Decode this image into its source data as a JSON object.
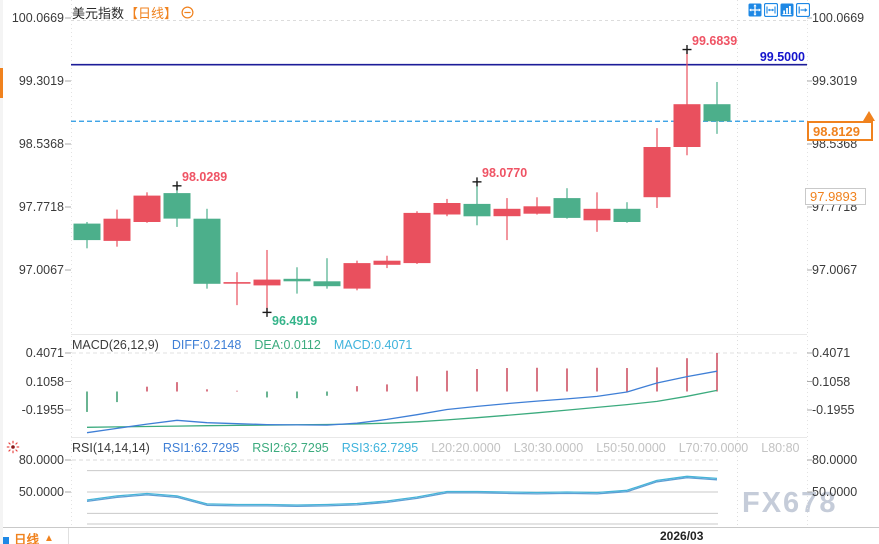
{
  "header": {
    "title": "美元指数",
    "period_tag": "【日线】",
    "collapse_icon": "minus-circle"
  },
  "toolbar": {
    "icons": [
      "move",
      "fit-width",
      "bar-chart",
      "pan-right"
    ]
  },
  "watermark": "FX678",
  "colors": {
    "up": "#e9505e",
    "down": "#4caf8b",
    "orange": "#f0821e",
    "navy_line": "#1c1c99",
    "dashed_blue": "#2597e4",
    "price_blue": "#1414cc",
    "diff_line": "#3f7fd6",
    "dea_line": "#3cab7e",
    "macd_cyan": "#3fb3dc",
    "hist_up": "#cf5365",
    "hist_down": "#45a277",
    "rsi_cyan": "#45b4d8",
    "rsi_blue": "#5e9fd4",
    "annotation_pink": "#ef5364",
    "annotation_green": "#35b48a",
    "gray_label": "#c2c2c2",
    "axis_text": "#3a3a3a",
    "toolbar_blue": "#1e88e5"
  },
  "main_axis": {
    "labels": [
      "100.0669",
      "99.3019",
      "98.5368",
      "97.7718",
      "97.0067"
    ],
    "values": [
      100.0669,
      99.3019,
      98.5368,
      97.7718,
      97.0067
    ]
  },
  "overlays": {
    "resistance_line": {
      "label": "99.5000",
      "value": 99.5
    },
    "current_price": {
      "label": "98.8129",
      "value": 98.8129
    },
    "secondary_price": {
      "label": "97.9893",
      "value": 97.9893
    }
  },
  "macd_header": {
    "name_label": "MACD(26,12,9)",
    "diff_label": "DIFF:0.2148",
    "dea_label": "DEA:0.0112",
    "macd_label": "MACD:0.4071"
  },
  "rsi_header": {
    "name_label": "RSI(14,14,14)",
    "rsi1_label": "RSI1:62.7295",
    "rsi2_label": "RSI2:62.7295",
    "rsi3_label": "RSI3:62.7295",
    "level_labels": [
      "L20:20.0000",
      "L30:30.0000",
      "L50:50.0000",
      "L70:70.0000",
      "L80:80"
    ]
  },
  "bottom_bar": {
    "period_label": "日线",
    "date_label": "2026/03"
  },
  "chart_data": [
    {
      "type": "candlestick",
      "title": "美元指数 日线",
      "ylim": [
        96.45,
        100.0669
      ],
      "yticks": [
        100.0669,
        99.3019,
        98.5368,
        97.7718,
        97.0067
      ],
      "ohlc": [
        [
          97.57,
          97.59,
          97.27,
          97.37
        ],
        [
          97.36,
          97.74,
          97.29,
          97.63
        ],
        [
          97.59,
          97.95,
          97.58,
          97.91
        ],
        [
          97.94,
          98.0289,
          97.53,
          97.63
        ],
        [
          97.63,
          97.75,
          96.78,
          96.84
        ],
        [
          96.84,
          96.98,
          96.58,
          96.86
        ],
        [
          96.82,
          97.25,
          96.4919,
          96.89
        ],
        [
          96.9,
          97.04,
          96.72,
          96.87
        ],
        [
          96.87,
          97.15,
          96.78,
          96.81
        ],
        [
          96.78,
          97.12,
          96.76,
          97.09
        ],
        [
          97.07,
          97.18,
          97.03,
          97.12
        ],
        [
          97.09,
          97.72,
          97.08,
          97.7
        ],
        [
          97.68,
          97.87,
          97.66,
          97.82
        ],
        [
          97.81,
          98.077,
          97.55,
          97.66
        ],
        [
          97.66,
          97.88,
          97.37,
          97.75
        ],
        [
          97.69,
          97.89,
          97.68,
          97.78
        ],
        [
          97.88,
          98.0,
          97.63,
          97.64
        ],
        [
          97.61,
          97.95,
          97.47,
          97.75
        ],
        [
          97.75,
          97.83,
          97.58,
          97.59
        ],
        [
          97.89,
          98.73,
          97.76,
          98.5
        ],
        [
          98.5,
          99.6839,
          98.4,
          99.02
        ],
        [
          99.02,
          99.29,
          98.66,
          98.8129
        ]
      ],
      "hlines": [
        {
          "value": 99.5,
          "label": "99.5000",
          "style": "solid"
        },
        {
          "value": 98.8129,
          "label": "98.8129",
          "style": "dashed"
        }
      ],
      "annotations": [
        {
          "i": 3,
          "side": "high",
          "value": 98.0289,
          "label": "98.0289",
          "color_key": "annotation_pink"
        },
        {
          "i": 6,
          "side": "low",
          "value": 96.4919,
          "label": "96.4919",
          "color_key": "annotation_green"
        },
        {
          "i": 13,
          "side": "high",
          "value": 98.077,
          "label": "98.0770",
          "color_key": "annotation_pink"
        },
        {
          "i": 20,
          "side": "high",
          "value": 99.6839,
          "label": "99.6839",
          "color_key": "annotation_pink"
        }
      ]
    },
    {
      "type": "bar",
      "title": "MACD(26,12,9)",
      "yticks": [
        0.4071,
        0.1058,
        -0.1955
      ],
      "axis_labels": [
        "0.4071",
        "0.1058",
        "-0.1955"
      ],
      "readout": {
        "diff": 0.2148,
        "dea": 0.0112,
        "macd": 0.4071
      },
      "hist": [
        -0.216,
        -0.112,
        0.051,
        0.099,
        0.023,
        0.008,
        -0.063,
        -0.071,
        -0.045,
        0.057,
        0.075,
        0.161,
        0.22,
        0.238,
        0.248,
        0.251,
        0.244,
        0.251,
        0.248,
        0.255,
        0.352,
        0.4071
      ],
      "diff": [
        -0.436,
        -0.39,
        -0.345,
        -0.305,
        -0.33,
        -0.34,
        -0.35,
        -0.353,
        -0.355,
        -0.335,
        -0.295,
        -0.245,
        -0.19,
        -0.158,
        -0.128,
        -0.102,
        -0.078,
        -0.052,
        -0.005,
        0.09,
        0.158,
        0.2148
      ],
      "dea": [
        -0.378,
        -0.374,
        -0.37,
        -0.366,
        -0.362,
        -0.358,
        -0.355,
        -0.352,
        -0.349,
        -0.344,
        -0.335,
        -0.32,
        -0.3,
        -0.277,
        -0.252,
        -0.225,
        -0.197,
        -0.168,
        -0.138,
        -0.105,
        -0.051,
        0.0112
      ]
    },
    {
      "type": "line",
      "title": "RSI(14,14,14)",
      "yticks": [
        80,
        50
      ],
      "axis_labels": [
        "80.0000",
        "50.0000"
      ],
      "levels": [
        80,
        70,
        50,
        30,
        20
      ],
      "readout": {
        "rsi1": 62.7295,
        "rsi2": 62.7295,
        "rsi3": 62.7295
      },
      "rsi1": [
        42.5,
        46.3,
        48.6,
        46.3,
        38.8,
        38.3,
        38.3,
        37.8,
        38.3,
        39.2,
        41.6,
        45.3,
        50.5,
        50.5,
        50,
        49.5,
        50,
        49.5,
        51.6,
        60.9,
        64.7,
        62.7295
      ]
    }
  ]
}
